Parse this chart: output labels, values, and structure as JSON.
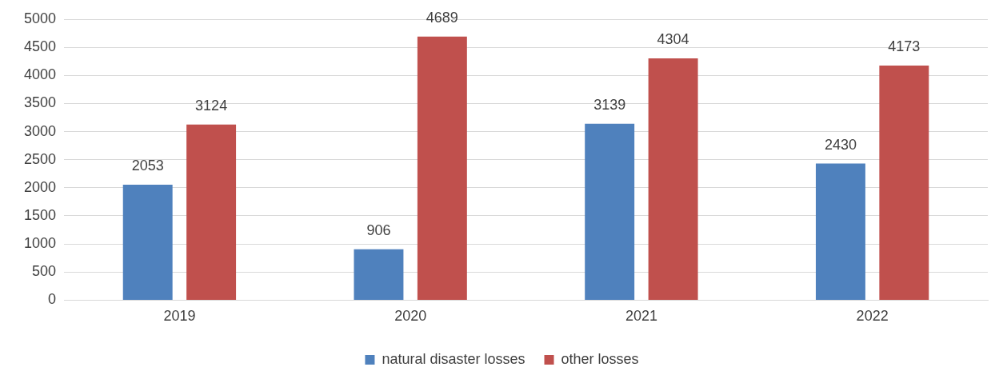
{
  "chart_data": {
    "type": "bar",
    "categories": [
      "2019",
      "2020",
      "2021",
      "2022"
    ],
    "series": [
      {
        "name": "natural disaster losses",
        "color": "#4f81bd",
        "values": [
          2053,
          906,
          3139,
          2430
        ]
      },
      {
        "name": "other losses",
        "color": "#c0504d",
        "values": [
          3124,
          4689,
          4304,
          4173
        ]
      }
    ],
    "ylim": [
      0,
      5000
    ],
    "yticks": [
      0,
      500,
      1000,
      1500,
      2000,
      2500,
      3000,
      3500,
      4000,
      4500,
      5000
    ],
    "grid": "y",
    "legend": "bottom",
    "data_labels": true
  }
}
